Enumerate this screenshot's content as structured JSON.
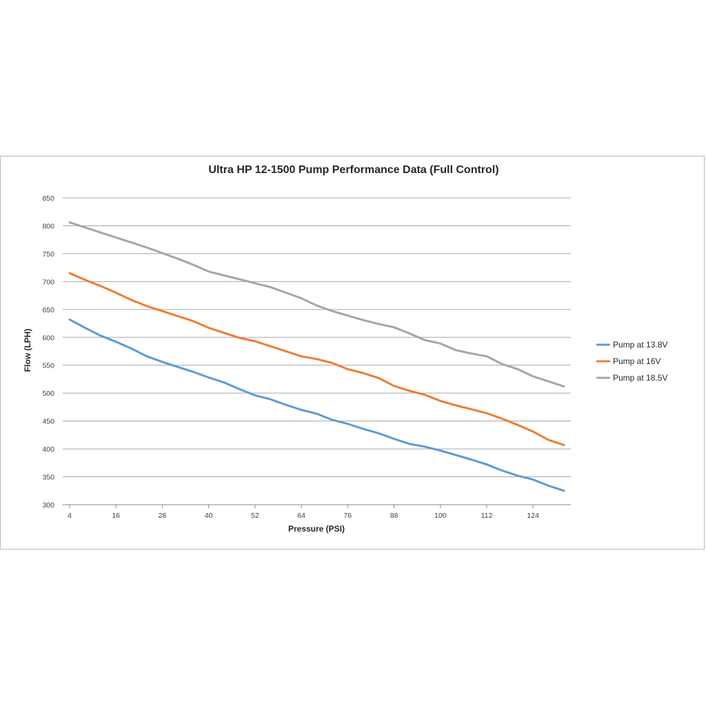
{
  "chart_data": {
    "type": "line",
    "title": "Ultra HP 12-1500 Pump Performance Data (Full Control)",
    "xlabel": "Pressure (PSI)",
    "ylabel": "Flow (LPH)",
    "xlim": [
      4,
      132
    ],
    "ylim": [
      300,
      850
    ],
    "x_ticks": [
      4,
      16,
      28,
      40,
      52,
      64,
      76,
      88,
      100,
      112,
      124
    ],
    "y_ticks": [
      300,
      350,
      400,
      450,
      500,
      550,
      600,
      650,
      700,
      750,
      800,
      850
    ],
    "grid": "horizontal",
    "legend_position": "right",
    "x": [
      4,
      8,
      12,
      16,
      20,
      24,
      28,
      32,
      36,
      40,
      44,
      48,
      52,
      56,
      60,
      64,
      68,
      72,
      76,
      80,
      84,
      88,
      92,
      96,
      100,
      104,
      108,
      112,
      116,
      120,
      124,
      128,
      132
    ],
    "series": [
      {
        "name": "Pump at 13.8V",
        "color": "#5b9bd5",
        "values": [
          632,
          617,
          603,
          592,
          580,
          566,
          556,
          547,
          538,
          528,
          519,
          507,
          496,
          489,
          479,
          470,
          463,
          452,
          445,
          436,
          428,
          418,
          409,
          404,
          397,
          389,
          381,
          372,
          361,
          352,
          345,
          334,
          325
        ]
      },
      {
        "name": "Pump at 16V",
        "color": "#ed7d31",
        "values": [
          715,
          703,
          692,
          680,
          667,
          656,
          647,
          638,
          629,
          617,
          608,
          599,
          593,
          584,
          575,
          566,
          561,
          554,
          543,
          536,
          527,
          513,
          504,
          497,
          486,
          478,
          471,
          464,
          454,
          443,
          431,
          416,
          407
        ]
      },
      {
        "name": "Pump at 18.5V",
        "color": "#a5a5a5",
        "values": [
          806,
          797,
          788,
          779,
          770,
          761,
          751,
          741,
          730,
          718,
          711,
          704,
          697,
          690,
          680,
          670,
          657,
          647,
          639,
          631,
          624,
          618,
          607,
          595,
          589,
          577,
          571,
          566,
          552,
          543,
          530,
          521,
          512
        ]
      }
    ]
  }
}
